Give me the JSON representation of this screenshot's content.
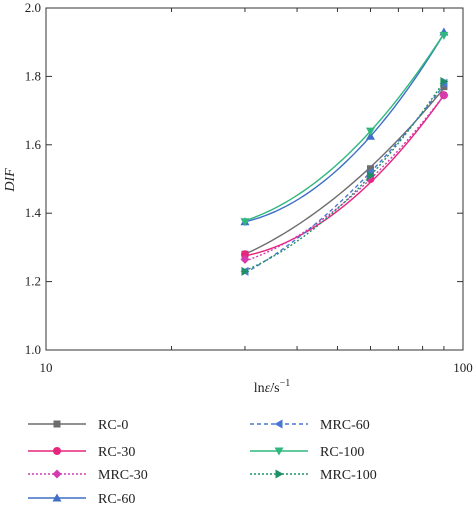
{
  "chart_data": {
    "type": "line",
    "title": "",
    "xlabel_main": "ln",
    "xlabel_symbol": "ε̇",
    "xlabel_unit": "/s",
    "xlabel_exp": "−1",
    "ylabel": "DIF",
    "x_scale": "log",
    "xlim": [
      10,
      100
    ],
    "ylim": [
      1.0,
      2.0
    ],
    "x_major_ticks": [
      10,
      100
    ],
    "x_major_labels": [
      "10",
      "100"
    ],
    "y_ticks": [
      1.0,
      1.2,
      1.4,
      1.6,
      1.8,
      2.0
    ],
    "y_tick_labels": [
      "1.0",
      "1.2",
      "1.4",
      "1.6",
      "1.8",
      "2.0"
    ],
    "grid": false,
    "legend_position": "bottom",
    "x": [
      30,
      60,
      90
    ],
    "series": [
      {
        "name": "RC-0",
        "color": "#6d6d6d",
        "marker": "square",
        "dash": "solid",
        "values": [
          1.28,
          1.53,
          1.77
        ],
        "fit": [
          1.28,
          1.535,
          1.765
        ]
      },
      {
        "name": "RC-30",
        "color": "#e6267c",
        "marker": "circle",
        "dash": "solid",
        "values": [
          1.28,
          1.5,
          1.745
        ],
        "fit": [
          1.275,
          1.49,
          1.745
        ]
      },
      {
        "name": "MRC-30",
        "color": "#d63ab0",
        "marker": "diamond",
        "dash": "dotted",
        "values": [
          1.265,
          1.51,
          1.745
        ],
        "fit": [
          1.26,
          1.5,
          1.745
        ]
      },
      {
        "name": "RC-60",
        "color": "#3f6fc6",
        "marker": "triangle-up",
        "dash": "solid",
        "values": [
          1.375,
          1.625,
          1.93
        ],
        "fit": [
          1.375,
          1.625,
          1.925
        ]
      },
      {
        "name": "MRC-60",
        "color": "#4a78d0",
        "marker": "triangle-left",
        "dash": "dashed",
        "values": [
          1.23,
          1.52,
          1.78
        ],
        "fit": [
          1.225,
          1.52,
          1.775
        ]
      },
      {
        "name": "RC-100",
        "color": "#2eb87e",
        "marker": "triangle-down",
        "dash": "solid",
        "values": [
          1.375,
          1.64,
          1.92
        ],
        "fit": [
          1.378,
          1.64,
          1.925
        ]
      },
      {
        "name": "MRC-100",
        "color": "#1f8f66",
        "marker": "triangle-right",
        "dash": "dotted",
        "values": [
          1.23,
          1.51,
          1.785
        ],
        "fit": [
          1.232,
          1.51,
          1.785
        ]
      }
    ]
  }
}
